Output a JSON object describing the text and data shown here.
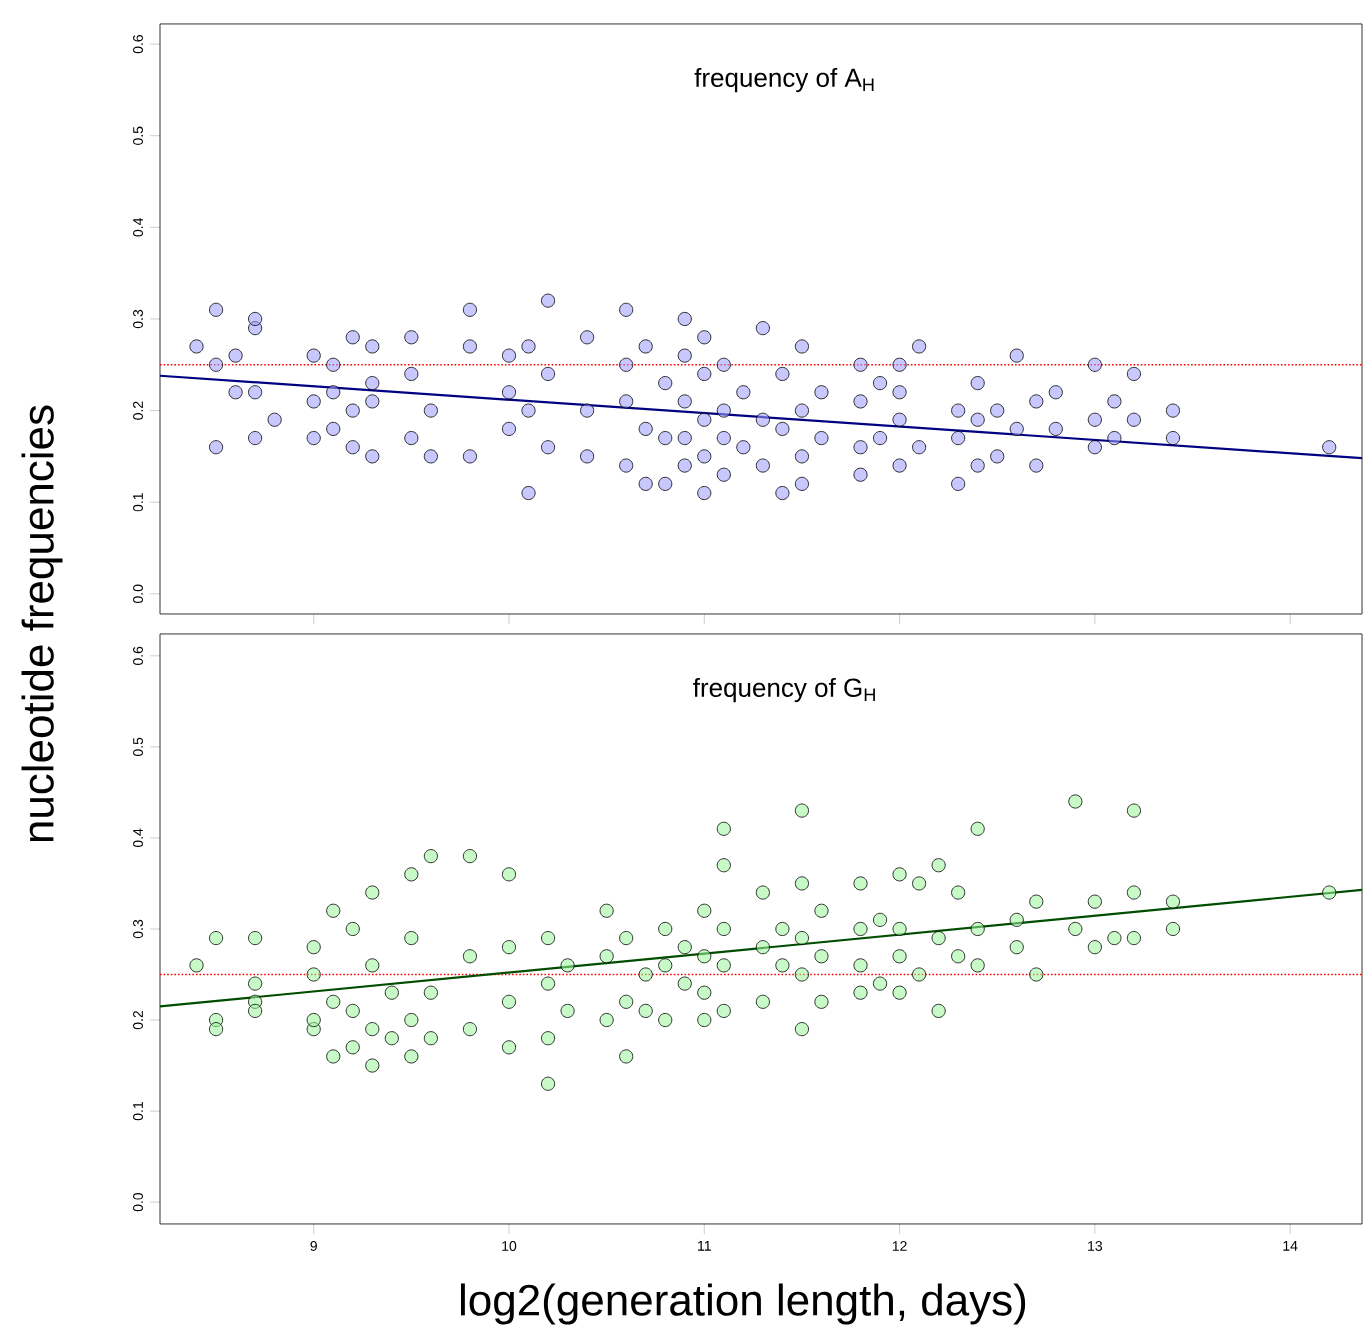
{
  "chart_data": [
    {
      "type": "scatter",
      "title": "frequency of A$_{H}$",
      "ylabel": "nucleotide frequencies",
      "series": [
        {
          "type": "scatter",
          "color": "#9a9aff",
          "marker": "circle",
          "x": [
            8.4,
            8.5,
            8.5,
            8.5,
            8.6,
            8.6,
            8.7,
            8.7,
            8.7,
            8.7,
            8.8,
            9.0,
            9.0,
            9.0,
            9.1,
            9.1,
            9.1,
            9.2,
            9.2,
            9.2,
            9.3,
            9.3,
            9.3,
            9.3,
            9.5,
            9.5,
            9.5,
            9.6,
            9.6,
            9.8,
            9.8,
            9.8,
            10.0,
            10.0,
            10.0,
            10.1,
            10.1,
            10.1,
            10.2,
            10.2,
            10.2,
            10.4,
            10.4,
            10.4,
            10.6,
            10.6,
            10.6,
            10.6,
            10.7,
            10.7,
            10.7,
            10.8,
            10.8,
            10.8,
            10.9,
            10.9,
            10.9,
            10.9,
            10.9,
            11.0,
            11.0,
            11.0,
            11.0,
            11.0,
            11.1,
            11.1,
            11.1,
            11.1,
            11.2,
            11.2,
            11.3,
            11.3,
            11.3,
            11.4,
            11.4,
            11.4,
            11.5,
            11.5,
            11.5,
            11.5,
            11.6,
            11.6,
            11.8,
            11.8,
            11.8,
            11.8,
            11.9,
            11.9,
            12.0,
            12.0,
            12.0,
            12.0,
            12.1,
            12.1,
            12.3,
            12.3,
            12.3,
            12.4,
            12.4,
            12.4,
            12.5,
            12.5,
            12.6,
            12.6,
            12.7,
            12.7,
            12.8,
            12.8,
            13.0,
            13.0,
            13.0,
            13.1,
            13.1,
            13.2,
            13.2,
            13.4,
            13.4,
            14.2
          ],
          "values": [
            0.27,
            0.31,
            0.16,
            0.25,
            0.22,
            0.26,
            0.29,
            0.3,
            0.17,
            0.22,
            0.19,
            0.26,
            0.21,
            0.17,
            0.25,
            0.18,
            0.22,
            0.28,
            0.2,
            0.16,
            0.27,
            0.21,
            0.15,
            0.23,
            0.28,
            0.24,
            0.17,
            0.2,
            0.15,
            0.27,
            0.15,
            0.31,
            0.26,
            0.22,
            0.18,
            0.27,
            0.2,
            0.11,
            0.32,
            0.24,
            0.16,
            0.28,
            0.2,
            0.15,
            0.31,
            0.25,
            0.21,
            0.14,
            0.27,
            0.18,
            0.12,
            0.23,
            0.17,
            0.12,
            0.3,
            0.26,
            0.21,
            0.17,
            0.14,
            0.28,
            0.24,
            0.19,
            0.15,
            0.11,
            0.25,
            0.2,
            0.17,
            0.13,
            0.22,
            0.16,
            0.29,
            0.19,
            0.14,
            0.24,
            0.18,
            0.11,
            0.27,
            0.2,
            0.15,
            0.12,
            0.22,
            0.17,
            0.25,
            0.21,
            0.16,
            0.13,
            0.23,
            0.17,
            0.25,
            0.22,
            0.19,
            0.14,
            0.27,
            0.16,
            0.2,
            0.12,
            0.17,
            0.23,
            0.19,
            0.14,
            0.2,
            0.15,
            0.26,
            0.18,
            0.21,
            0.14,
            0.18,
            0.22,
            0.25,
            0.19,
            0.16,
            0.21,
            0.17,
            0.24,
            0.19,
            0.2,
            0.17,
            0.16
          ]
        },
        {
          "type": "line",
          "color": "#000080",
          "marker": "none",
          "line_style": "solid",
          "x": [
            8.213,
            14.368
          ],
          "values": [
            0.238,
            0.148
          ]
        }
      ],
      "ref_lines": [
        {
          "axis": "y",
          "value": 0.25,
          "color": "#ff0000",
          "line_style": "dotted"
        }
      ],
      "xlim": [
        8.213,
        14.368
      ],
      "ylim": [
        -0.022,
        0.622
      ],
      "xticks": [
        9,
        10,
        11,
        12,
        13,
        14
      ],
      "yticks": [
        {
          "value": 0,
          "label": "0.0"
        },
        0.1,
        0.2,
        0.3,
        0.4,
        0.5,
        0.6
      ],
      "tick_labels": "y",
      "grid": false
    },
    {
      "type": "scatter",
      "title": "frequency of G$_{H}$",
      "xlabel": "log2(generation length, days)",
      "series": [
        {
          "type": "scatter",
          "color": "#9af59a",
          "marker": "circle",
          "x": [
            8.4,
            8.5,
            8.5,
            8.5,
            8.7,
            8.7,
            8.7,
            8.7,
            9.0,
            9.0,
            9.0,
            9.0,
            9.1,
            9.1,
            9.1,
            9.2,
            9.2,
            9.2,
            9.3,
            9.3,
            9.3,
            9.3,
            9.4,
            9.4,
            9.5,
            9.5,
            9.5,
            9.5,
            9.6,
            9.6,
            9.6,
            9.8,
            9.8,
            9.8,
            10.0,
            10.0,
            10.0,
            10.0,
            10.2,
            10.2,
            10.2,
            10.2,
            10.3,
            10.3,
            10.5,
            10.5,
            10.5,
            10.6,
            10.6,
            10.6,
            10.7,
            10.7,
            10.8,
            10.8,
            10.8,
            10.9,
            10.9,
            11.0,
            11.0,
            11.0,
            11.0,
            11.1,
            11.1,
            11.1,
            11.1,
            11.1,
            11.3,
            11.3,
            11.3,
            11.4,
            11.4,
            11.5,
            11.5,
            11.5,
            11.5,
            11.5,
            11.6,
            11.6,
            11.6,
            11.8,
            11.8,
            11.8,
            11.8,
            11.9,
            11.9,
            12.0,
            12.0,
            12.0,
            12.0,
            12.1,
            12.1,
            12.2,
            12.2,
            12.2,
            12.3,
            12.3,
            12.4,
            12.4,
            12.4,
            12.6,
            12.6,
            12.7,
            12.7,
            12.9,
            12.9,
            13.0,
            13.0,
            13.1,
            13.2,
            13.2,
            13.2,
            13.4,
            13.4,
            14.2
          ],
          "values": [
            0.26,
            0.29,
            0.2,
            0.19,
            0.29,
            0.22,
            0.24,
            0.21,
            0.28,
            0.19,
            0.25,
            0.2,
            0.32,
            0.22,
            0.16,
            0.3,
            0.21,
            0.17,
            0.34,
            0.26,
            0.19,
            0.15,
            0.23,
            0.18,
            0.36,
            0.29,
            0.2,
            0.16,
            0.38,
            0.23,
            0.18,
            0.38,
            0.27,
            0.19,
            0.36,
            0.28,
            0.22,
            0.17,
            0.29,
            0.24,
            0.13,
            0.18,
            0.26,
            0.21,
            0.32,
            0.27,
            0.2,
            0.29,
            0.22,
            0.16,
            0.25,
            0.21,
            0.3,
            0.26,
            0.2,
            0.28,
            0.24,
            0.32,
            0.27,
            0.23,
            0.2,
            0.41,
            0.37,
            0.3,
            0.26,
            0.21,
            0.34,
            0.28,
            0.22,
            0.3,
            0.26,
            0.43,
            0.35,
            0.29,
            0.25,
            0.19,
            0.32,
            0.27,
            0.22,
            0.35,
            0.3,
            0.26,
            0.23,
            0.31,
            0.24,
            0.36,
            0.3,
            0.27,
            0.23,
            0.35,
            0.25,
            0.37,
            0.29,
            0.21,
            0.34,
            0.27,
            0.41,
            0.3,
            0.26,
            0.31,
            0.28,
            0.33,
            0.25,
            0.44,
            0.3,
            0.33,
            0.28,
            0.29,
            0.43,
            0.34,
            0.29,
            0.33,
            0.3,
            0.34
          ]
        },
        {
          "type": "line",
          "color": "#004d00",
          "marker": "none",
          "line_style": "solid",
          "x": [
            8.213,
            14.368
          ],
          "values": [
            0.215,
            0.343
          ]
        }
      ],
      "ref_lines": [
        {
          "axis": "y",
          "value": 0.25,
          "color": "#ff0000",
          "line_style": "dotted"
        }
      ],
      "xlim": [
        8.213,
        14.368
      ],
      "ylim": [
        -0.024,
        0.624
      ],
      "xticks": [
        9,
        10,
        11,
        12,
        13,
        14
      ],
      "yticks": [
        {
          "value": 0,
          "label": "0.0"
        },
        0.1,
        0.2,
        0.3,
        0.4,
        0.5,
        0.6
      ],
      "grid": false
    }
  ]
}
